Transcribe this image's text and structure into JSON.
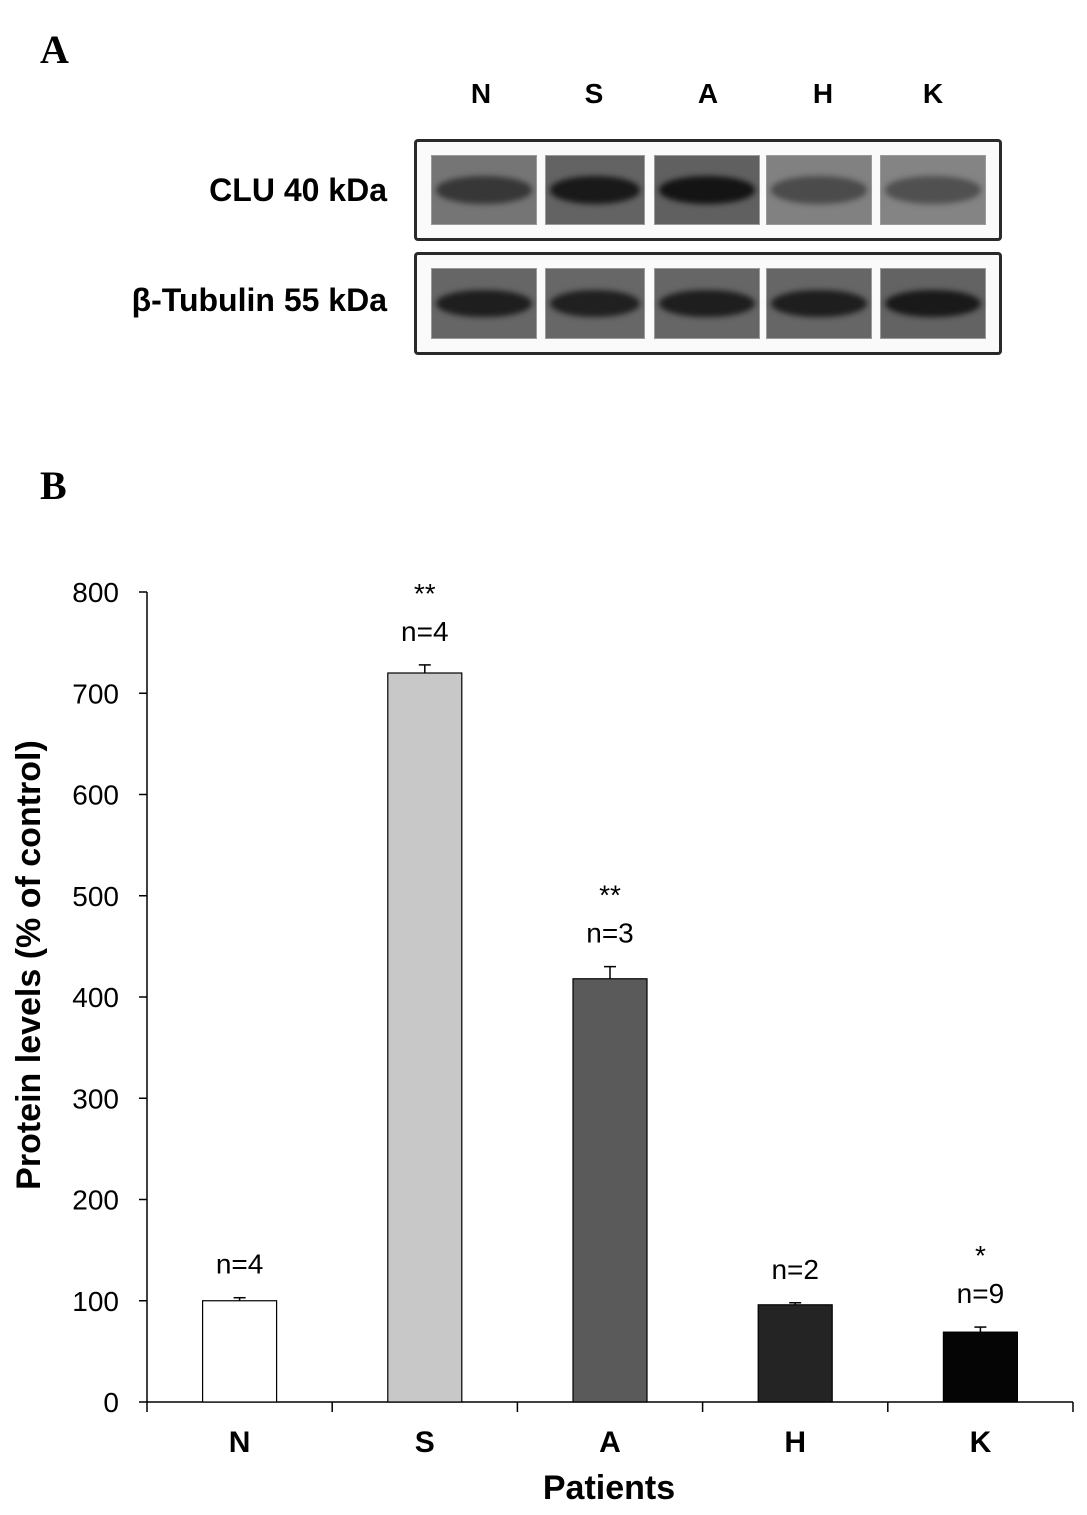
{
  "panel_a": {
    "letter": "A",
    "lanes": [
      "N",
      "S",
      "A",
      "H",
      "K"
    ],
    "rows": [
      {
        "label": "CLU 40 kDa",
        "band_darkness": [
          0.55,
          0.85,
          0.9,
          0.35,
          0.3
        ]
      },
      {
        "label": "β-Tubulin 55 kDa",
        "band_darkness": [
          0.8,
          0.78,
          0.8,
          0.8,
          0.85
        ]
      }
    ]
  },
  "panel_b": {
    "letter": "B"
  },
  "chart_data": {
    "type": "bar",
    "title": "",
    "xlabel": "Patients",
    "ylabel": "Protein levels (% of control)",
    "categories": [
      "N",
      "S",
      "A",
      "H",
      "K"
    ],
    "values": [
      100,
      720,
      418,
      96,
      69
    ],
    "errors": [
      3,
      8,
      12,
      2,
      5
    ],
    "n_labels": [
      "n=4",
      "n=4",
      "n=3",
      "n=2",
      "n=9"
    ],
    "significance": [
      "",
      "**",
      "**",
      "",
      "*"
    ],
    "bar_colors": [
      "#ffffff",
      "#c8c8c8",
      "#5a5a5a",
      "#242424",
      "#050505"
    ],
    "ylim": [
      0,
      800
    ],
    "yticks": [
      0,
      100,
      200,
      300,
      400,
      500,
      600,
      700,
      800
    ],
    "grid": false,
    "legend": "none"
  }
}
